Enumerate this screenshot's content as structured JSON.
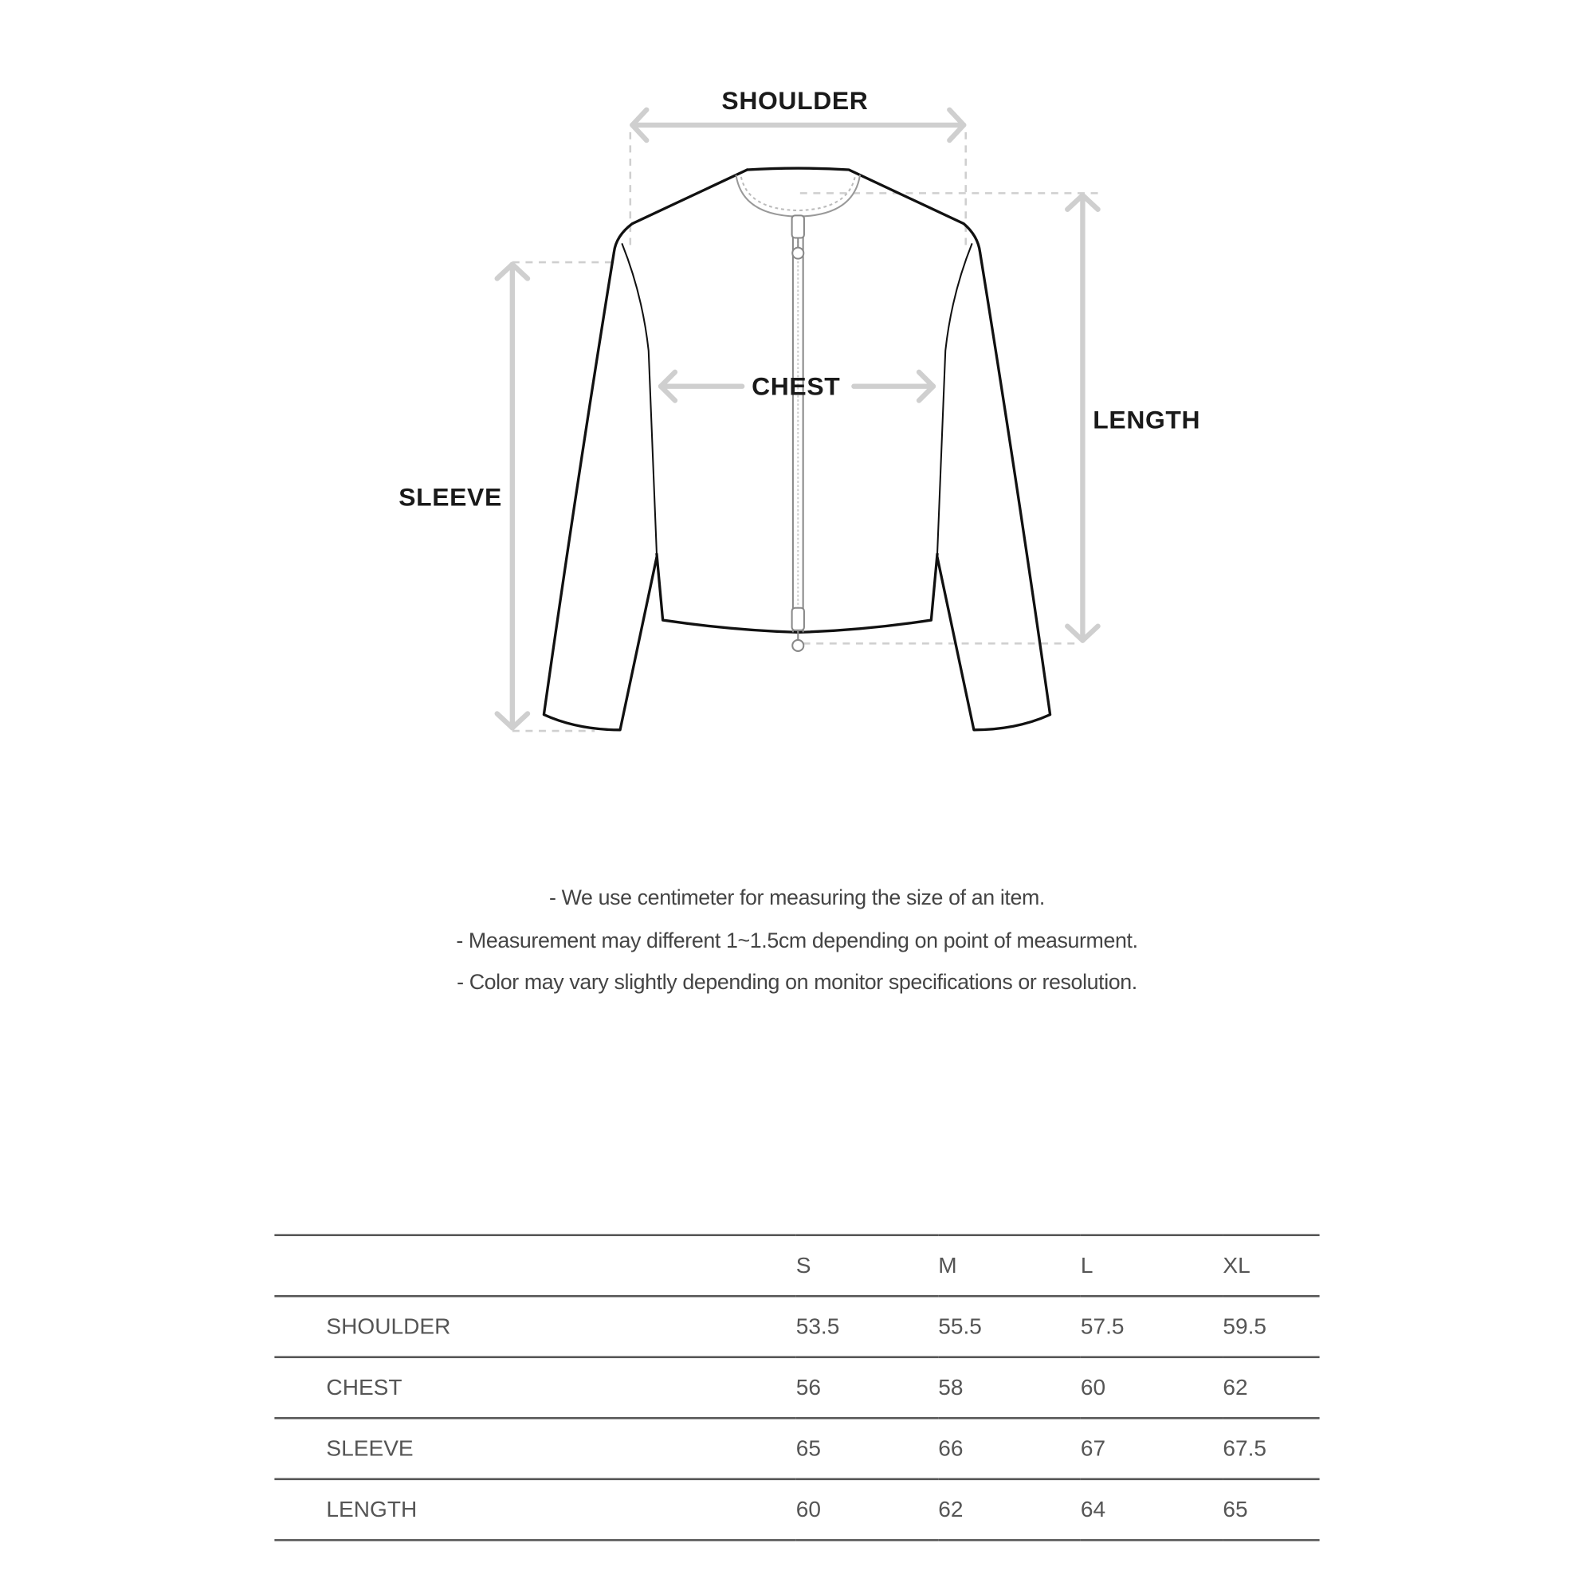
{
  "diagram": {
    "labels": {
      "shoulder": "SHOULDER",
      "chest": "CHEST",
      "sleeve": "SLEEVE",
      "length": "LENGTH"
    },
    "colors": {
      "outline": "#111111",
      "guide": "#cccccc",
      "zipper": "#999999"
    }
  },
  "notes": [
    "- We use centimeter for measuring the size of an item.",
    "- Measurement may different 1~1.5cm depending on point of measurment.",
    "- Color may vary slightly depending on monitor specifications or resolution."
  ],
  "size_table": {
    "columns": [
      "",
      "S",
      "M",
      "L",
      "XL"
    ],
    "rows": [
      {
        "label": "SHOULDER",
        "values": [
          "53.5",
          "55.5",
          "57.5",
          "59.5"
        ]
      },
      {
        "label": "CHEST",
        "values": [
          "56",
          "58",
          "60",
          "62"
        ]
      },
      {
        "label": "SLEEVE",
        "values": [
          "65",
          "66",
          "67",
          "67.5"
        ]
      },
      {
        "label": "LENGTH",
        "values": [
          "60",
          "62",
          "64",
          "65"
        ]
      }
    ]
  }
}
